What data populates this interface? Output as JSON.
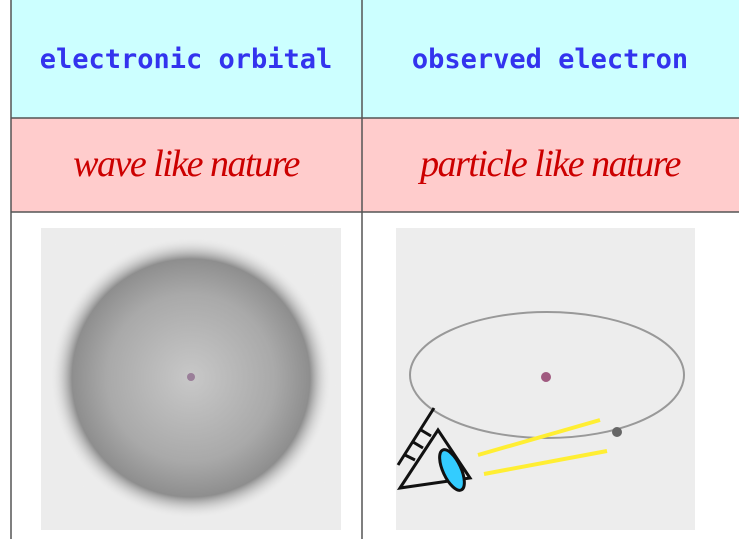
{
  "table": {
    "rows": [
      [
        "electronic orbital",
        "observed electron"
      ],
      [
        "wave like nature",
        "particle like nature"
      ]
    ]
  }
}
